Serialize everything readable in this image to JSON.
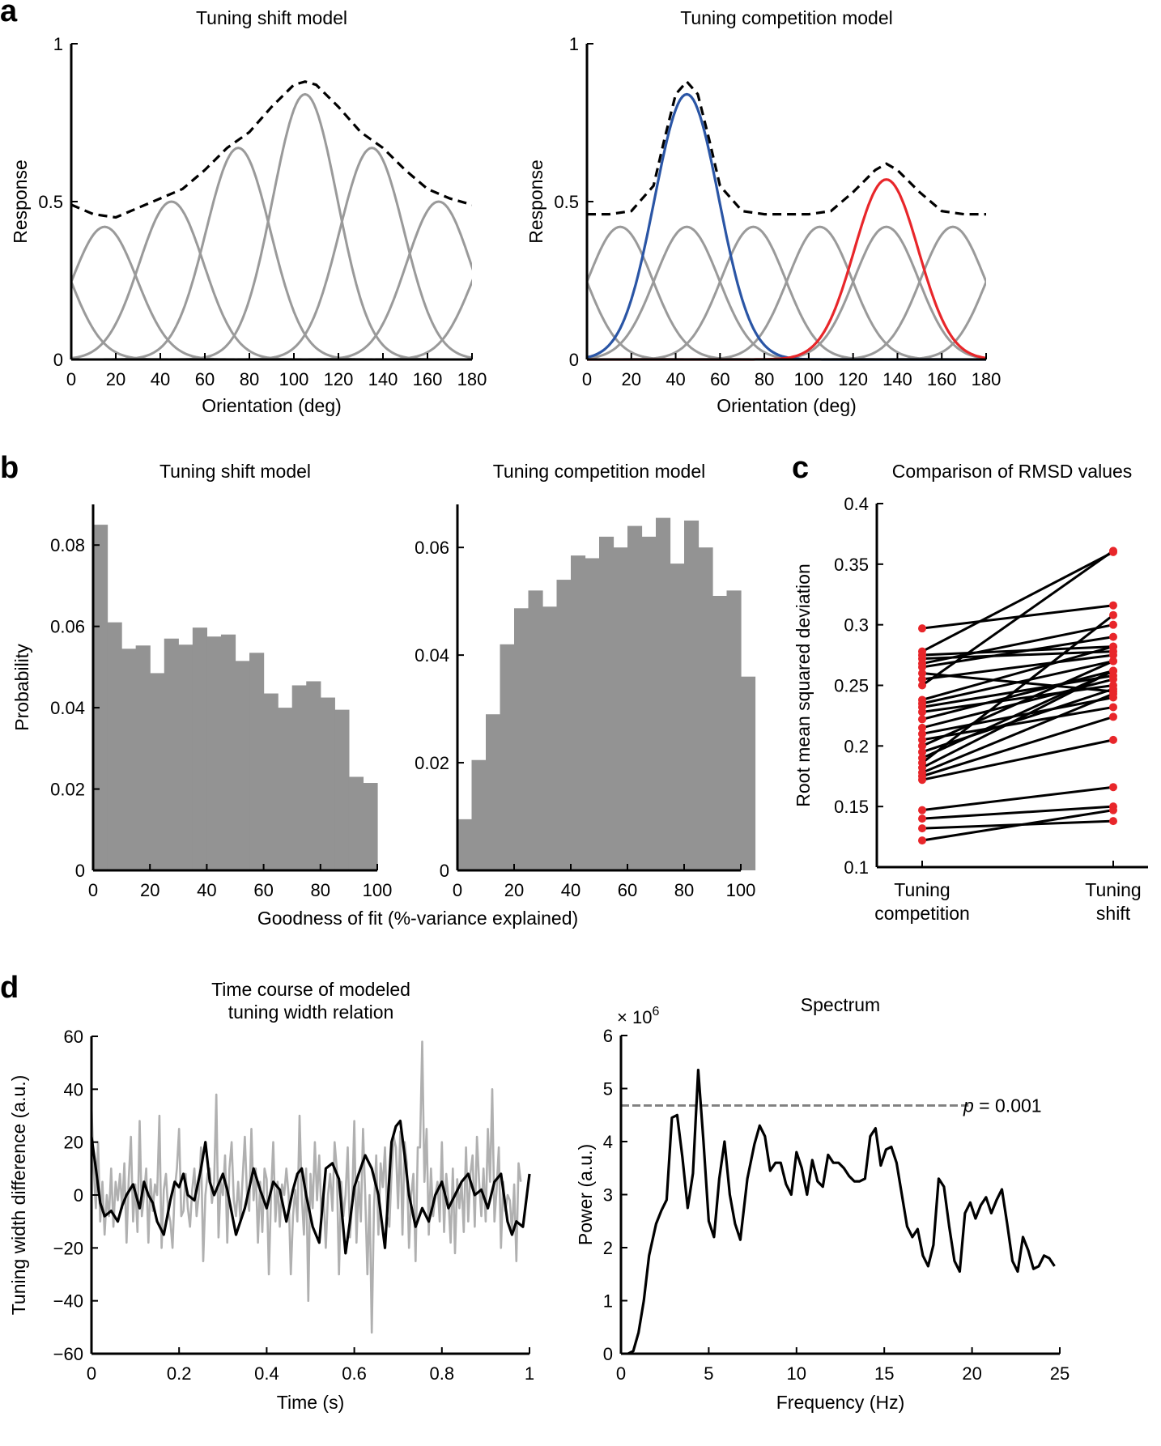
{
  "panel_labels": [
    "a",
    "b",
    "c",
    "d"
  ],
  "chart_data": [
    {
      "id": "a1",
      "type": "line",
      "title": "Tuning shift model",
      "xlabel": "Orientation (deg)",
      "ylabel": "Response",
      "xlim": [
        0,
        180
      ],
      "ylim": [
        0,
        1
      ],
      "xticks": [
        0,
        20,
        40,
        60,
        80,
        100,
        120,
        140,
        160,
        180
      ],
      "yticks": [
        0,
        0.5,
        1
      ],
      "ytick_labels": [
        "0",
        "0.5",
        "1"
      ],
      "colors": {
        "channels": "#9a9a9a",
        "sum": "#000000"
      },
      "series": [
        {
          "style": "gray",
          "values": [
            [
              -15,
              0.42
            ],
            [
              15,
              0.42
            ],
            [
              45,
              0.5
            ],
            [
              75,
              0.67
            ],
            [
              105,
              0.84
            ],
            [
              135,
              0.67
            ],
            [
              165,
              0.5
            ],
            [
              195,
              0.42
            ]
          ]
        },
        {
          "style": "dashed",
          "x": [
            0,
            10,
            20,
            30,
            40,
            50,
            60,
            70,
            80,
            90,
            100,
            105,
            110,
            120,
            130,
            140,
            150,
            160,
            170,
            180
          ],
          "values": [
            0.49,
            0.46,
            0.45,
            0.48,
            0.51,
            0.54,
            0.6,
            0.67,
            0.72,
            0.8,
            0.87,
            0.88,
            0.87,
            0.8,
            0.72,
            0.67,
            0.6,
            0.54,
            0.51,
            0.49
          ]
        }
      ]
    },
    {
      "id": "a2",
      "type": "line",
      "title": "Tuning competition model",
      "xlabel": "Orientation (deg)",
      "ylabel": "Response",
      "xlim": [
        0,
        180
      ],
      "ylim": [
        0,
        1
      ],
      "xticks": [
        0,
        20,
        40,
        60,
        80,
        100,
        120,
        140,
        160,
        180
      ],
      "yticks": [
        0,
        0.5,
        1
      ],
      "ytick_labels": [
        "0",
        "0.5",
        "1"
      ],
      "colors": {
        "channels": "#9a9a9a",
        "blue": "#2a55a5",
        "red": "#e8262a",
        "sum": "#000000"
      },
      "series": [
        {
          "style": "gray",
          "values": [
            [
              -15,
              0.42
            ],
            [
              15,
              0.42
            ],
            [
              45,
              0.42
            ],
            [
              75,
              0.42
            ],
            [
              105,
              0.42
            ],
            [
              135,
              0.42
            ],
            [
              165,
              0.42
            ],
            [
              195,
              0.42
            ]
          ]
        },
        {
          "style": "blue",
          "values": [
            [
              45,
              0.84
            ]
          ]
        },
        {
          "style": "red",
          "values": [
            [
              135,
              0.57
            ]
          ]
        },
        {
          "style": "dashed",
          "x": [
            0,
            10,
            20,
            30,
            35,
            40,
            45,
            50,
            55,
            60,
            70,
            80,
            90,
            100,
            110,
            120,
            130,
            135,
            140,
            150,
            160,
            170,
            180
          ],
          "values": [
            0.46,
            0.46,
            0.47,
            0.55,
            0.7,
            0.84,
            0.88,
            0.84,
            0.7,
            0.55,
            0.47,
            0.46,
            0.46,
            0.46,
            0.47,
            0.53,
            0.6,
            0.62,
            0.6,
            0.53,
            0.47,
            0.46,
            0.46
          ]
        }
      ]
    },
    {
      "id": "b1",
      "type": "bar",
      "title": "Tuning shift model",
      "ylabel": "Probability",
      "xlim": [
        0,
        100
      ],
      "ylim": [
        0,
        0.09
      ],
      "xticks": [
        0,
        20,
        40,
        60,
        80,
        100
      ],
      "yticks": [
        0,
        0.02,
        0.04,
        0.06,
        0.08
      ],
      "ytick_labels": [
        "0",
        "0.02",
        "0.04",
        "0.06",
        "0.08"
      ],
      "bin_width": 5,
      "values": [
        0.085,
        0.061,
        0.0545,
        0.0553,
        0.0485,
        0.057,
        0.0555,
        0.0597,
        0.0575,
        0.058,
        0.0515,
        0.0535,
        0.0435,
        0.04,
        0.0455,
        0.0465,
        0.0425,
        0.0395,
        0.023,
        0.0215
      ]
    },
    {
      "id": "b2",
      "type": "bar",
      "title": "Tuning competition model",
      "xlabel": "Goodness of fit (%-variance explained)",
      "xlim": [
        0,
        100
      ],
      "ylim": [
        0,
        0.068
      ],
      "xticks": [
        0,
        20,
        40,
        60,
        80,
        100
      ],
      "yticks": [
        0,
        0.02,
        0.04,
        0.06
      ],
      "ytick_labels": [
        "0",
        "0.02",
        "0.04",
        "0.06"
      ],
      "bin_width": 5,
      "values": [
        0.0095,
        0.0205,
        0.029,
        0.042,
        0.0487,
        0.052,
        0.049,
        0.054,
        0.0585,
        0.058,
        0.062,
        0.06,
        0.064,
        0.062,
        0.0655,
        0.057,
        0.065,
        0.06,
        0.051,
        0.052,
        0.036
      ]
    },
    {
      "id": "c",
      "type": "line",
      "title": "Comparison of RMSD values",
      "ylabel": "Root mean squared deviation",
      "categories": [
        [
          "Tuning",
          "competition"
        ],
        [
          "Tuning",
          "shift"
        ]
      ],
      "ylim": [
        0.1,
        0.4
      ],
      "yticks": [
        0.1,
        0.15,
        0.2,
        0.25,
        0.3,
        0.35,
        0.4
      ],
      "ytick_labels": [
        "0.1",
        "0.15",
        "0.2",
        "0.25",
        "0.3",
        "0.35",
        "0.4"
      ],
      "colors": {
        "points": "#e8262a",
        "lines": "#000000"
      },
      "pairs": [
        [
          0.297,
          0.316
        ],
        [
          0.278,
          0.36
        ],
        [
          0.275,
          0.282
        ],
        [
          0.272,
          0.278
        ],
        [
          0.268,
          0.3
        ],
        [
          0.265,
          0.29
        ],
        [
          0.26,
          0.245
        ],
        [
          0.255,
          0.275
        ],
        [
          0.25,
          0.361
        ],
        [
          0.238,
          0.282
        ],
        [
          0.235,
          0.27
        ],
        [
          0.232,
          0.258
        ],
        [
          0.228,
          0.25
        ],
        [
          0.222,
          0.262
        ],
        [
          0.215,
          0.255
        ],
        [
          0.21,
          0.24
        ],
        [
          0.205,
          0.232
        ],
        [
          0.2,
          0.27
        ],
        [
          0.195,
          0.247
        ],
        [
          0.19,
          0.262
        ],
        [
          0.186,
          0.308
        ],
        [
          0.182,
          0.262
        ],
        [
          0.178,
          0.243
        ],
        [
          0.175,
          0.224
        ],
        [
          0.172,
          0.205
        ],
        [
          0.147,
          0.166
        ],
        [
          0.14,
          0.15
        ],
        [
          0.132,
          0.138
        ],
        [
          0.122,
          0.147
        ]
      ]
    },
    {
      "id": "d1",
      "type": "line",
      "title": [
        "Time course of modeled",
        "tuning width relation"
      ],
      "xlabel": "Time (s)",
      "ylabel": "Tuning width difference (a.u.)",
      "xlim": [
        0,
        1
      ],
      "ylim": [
        -60,
        60
      ],
      "xticks": [
        0,
        0.2,
        0.4,
        0.6,
        0.8,
        1
      ],
      "xtick_labels": [
        "0",
        "0.2",
        "0.4",
        "0.6",
        "0.8",
        "1"
      ],
      "yticks": [
        -60,
        -40,
        -20,
        0,
        20,
        40,
        60
      ],
      "ytick_labels": [
        "−60",
        "−40",
        "−20",
        "0",
        "20",
        "40",
        "60"
      ],
      "colors": {
        "raw": "#b0b0b0",
        "smoothed": "#000000"
      },
      "series": [
        {
          "name_key": "raw",
          "x_step": 0.005,
          "values": [
            34,
            10,
            -5,
            20,
            -10,
            5,
            -15,
            0,
            -8,
            10,
            -12,
            5,
            -2,
            8,
            -5,
            12,
            -18,
            6,
            22,
            -10,
            4,
            -14,
            28,
            -8,
            0,
            10,
            -18,
            6,
            -6,
            4,
            0,
            30,
            -20,
            2,
            8,
            -6,
            -10,
            -20,
            2,
            10,
            25,
            -8,
            -6,
            8,
            -5,
            -12,
            2,
            10,
            -8,
            0,
            18,
            -25,
            0,
            8,
            10,
            -3,
            5,
            38,
            -16,
            5,
            0,
            15,
            -18,
            10,
            20,
            -2,
            -8,
            5,
            -10,
            6,
            22,
            0,
            -6,
            25,
            -2,
            10,
            -18,
            5,
            -14,
            10,
            6,
            -30,
            0,
            20,
            -10,
            5,
            -12,
            4,
            0,
            10,
            0,
            -30,
            -8,
            2,
            -10,
            30,
            0,
            -15,
            10,
            -40,
            8,
            -5,
            20,
            -2,
            15,
            -8,
            0,
            -20,
            0,
            8,
            -6,
            20,
            10,
            -30,
            5,
            -8,
            0,
            18,
            -16,
            -3,
            28,
            -18,
            5,
            -10,
            25,
            0,
            -30,
            0,
            -52,
            -5,
            15,
            -15,
            12,
            3,
            18,
            -8,
            -12,
            8,
            22,
            18,
            -5,
            24,
            -15,
            20,
            12,
            -20,
            0,
            8,
            -25,
            18,
            18,
            58,
            5,
            25,
            -15,
            10,
            -8,
            0,
            5,
            -10,
            20,
            -14,
            8,
            -2,
            -18,
            10,
            -22,
            6,
            -5,
            5,
            -14,
            18,
            -10,
            8,
            15,
            -12,
            22,
            5,
            -8,
            10,
            -10,
            25,
            5,
            40,
            -10,
            2,
            18,
            -20,
            5,
            -6,
            0,
            -2,
            -14,
            4,
            -25,
            12,
            5
          ]
        },
        {
          "name_key": "smoothed",
          "x": [
            0,
            0.01,
            0.02,
            0.03,
            0.045,
            0.06,
            0.07,
            0.08,
            0.095,
            0.11,
            0.12,
            0.13,
            0.14,
            0.15,
            0.165,
            0.18,
            0.19,
            0.2,
            0.21,
            0.22,
            0.235,
            0.25,
            0.26,
            0.27,
            0.28,
            0.29,
            0.3,
            0.31,
            0.33,
            0.35,
            0.37,
            0.385,
            0.4,
            0.415,
            0.43,
            0.445,
            0.46,
            0.47,
            0.48,
            0.49,
            0.505,
            0.52,
            0.535,
            0.55,
            0.565,
            0.58,
            0.59,
            0.6,
            0.61,
            0.625,
            0.64,
            0.655,
            0.67,
            0.685,
            0.695,
            0.705,
            0.715,
            0.725,
            0.74,
            0.755,
            0.77,
            0.785,
            0.8,
            0.815,
            0.83,
            0.845,
            0.86,
            0.875,
            0.89,
            0.905,
            0.92,
            0.935,
            0.95,
            0.96,
            0.97,
            0.985,
            1
          ],
          "values": [
            22,
            10,
            -3,
            -8,
            -6,
            -10,
            -4,
            0,
            4,
            -5,
            5,
            0,
            -3,
            -10,
            -15,
            -2,
            5,
            3,
            8,
            0,
            -2,
            10,
            20,
            5,
            0,
            4,
            8,
            2,
            -15,
            -5,
            10,
            2,
            -5,
            5,
            2,
            -10,
            2,
            8,
            10,
            0,
            -12,
            -18,
            10,
            12,
            6,
            -22,
            -10,
            3,
            8,
            15,
            10,
            0,
            -20,
            20,
            26,
            28,
            15,
            0,
            -12,
            -5,
            -10,
            0,
            5,
            -5,
            0,
            5,
            8,
            0,
            2,
            -5,
            5,
            8,
            -10,
            -15,
            -10,
            -12,
            8
          ]
        }
      ]
    },
    {
      "id": "d2",
      "type": "line",
      "title": "Spectrum",
      "xlabel": "Frequency (Hz)",
      "ylabel": "Power (a.u.)",
      "multiplier_label": "× 10",
      "multiplier_exp": "6",
      "xlim": [
        0,
        25
      ],
      "ylim": [
        0,
        6
      ],
      "xticks": [
        0,
        5,
        10,
        15,
        20,
        25
      ],
      "yticks": [
        0,
        1,
        2,
        3,
        4,
        5,
        6
      ],
      "threshold": {
        "value": 4.68,
        "label_p": "p",
        "label_rest": " = 0.001",
        "color": "#808080"
      },
      "colors": {
        "line": "#000000"
      },
      "x": [
        0.4,
        0.7,
        1.0,
        1.3,
        1.6,
        2.0,
        2.3,
        2.6,
        2.9,
        3.2,
        3.5,
        3.8,
        4.1,
        4.4,
        4.7,
        5.0,
        5.3,
        5.6,
        5.9,
        6.2,
        6.5,
        6.8,
        7.2,
        7.6,
        7.9,
        8.2,
        8.5,
        8.8,
        9.1,
        9.4,
        9.7,
        10.0,
        10.3,
        10.6,
        10.9,
        11.2,
        11.5,
        11.8,
        12.1,
        12.4,
        12.7,
        13.0,
        13.3,
        13.6,
        13.9,
        14.2,
        14.5,
        14.8,
        15.1,
        15.4,
        15.7,
        16.0,
        16.3,
        16.6,
        16.9,
        17.2,
        17.5,
        17.8,
        18.1,
        18.4,
        18.7,
        19.0,
        19.3,
        19.6,
        19.9,
        20.2,
        20.5,
        20.8,
        21.1,
        21.4,
        21.7,
        22.0,
        22.3,
        22.6,
        22.9,
        23.2,
        23.5,
        23.8,
        24.1,
        24.4,
        24.7
      ],
      "values": [
        0,
        0.05,
        0.4,
        1.0,
        1.85,
        2.45,
        2.7,
        2.9,
        4.45,
        4.5,
        3.7,
        2.75,
        3.4,
        5.35,
        4.0,
        2.5,
        2.2,
        3.3,
        4.0,
        3.0,
        2.45,
        2.15,
        3.3,
        3.95,
        4.3,
        4.1,
        3.45,
        3.6,
        3.6,
        3.2,
        3.0,
        3.8,
        3.5,
        3.0,
        3.65,
        3.25,
        3.15,
        3.75,
        3.6,
        3.6,
        3.5,
        3.35,
        3.25,
        3.25,
        3.3,
        4.1,
        4.25,
        3.55,
        3.85,
        3.9,
        3.6,
        3.0,
        2.4,
        2.2,
        2.35,
        1.85,
        1.65,
        2.05,
        3.3,
        3.15,
        2.4,
        1.75,
        1.55,
        2.65,
        2.85,
        2.55,
        2.8,
        2.95,
        2.65,
        2.9,
        3.1,
        2.45,
        1.75,
        1.55,
        2.2,
        1.95,
        1.6,
        1.65,
        1.85,
        1.8,
        1.65
      ]
    }
  ]
}
